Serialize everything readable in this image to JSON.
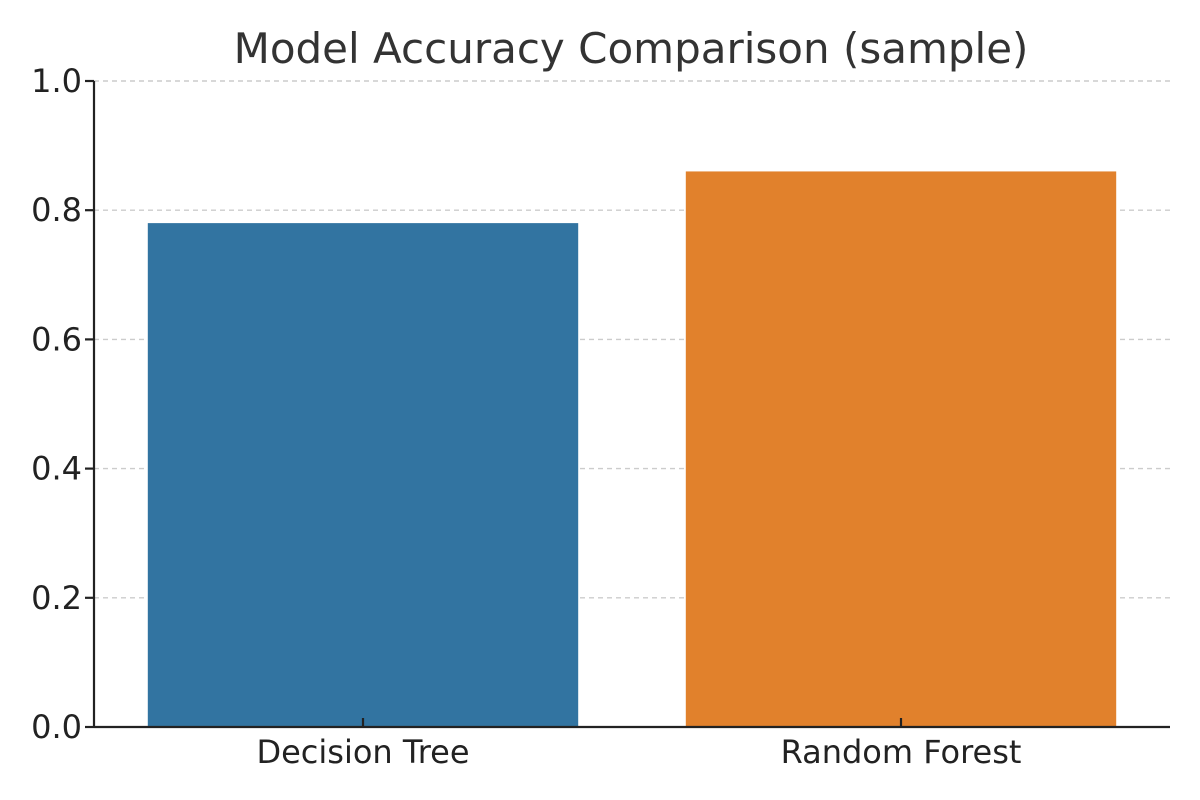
{
  "chart_data": {
    "type": "bar",
    "title": "Model Accuracy Comparison (sample)",
    "xlabel": "",
    "ylabel": "",
    "categories": [
      "Decision Tree",
      "Random Forest"
    ],
    "values": [
      0.78,
      0.86
    ],
    "ylim": [
      0,
      1
    ],
    "y_ticks": [
      0.0,
      0.2,
      0.4,
      0.6,
      0.8,
      1.0
    ],
    "y_tick_labels": [
      "0.0",
      "0.2",
      "0.4",
      "0.6",
      "0.8",
      "1.0"
    ],
    "grid": true,
    "colors": [
      "#3274a1",
      "#e1812c"
    ],
    "axis_color": "#222222",
    "grid_color": "#cccccc"
  }
}
